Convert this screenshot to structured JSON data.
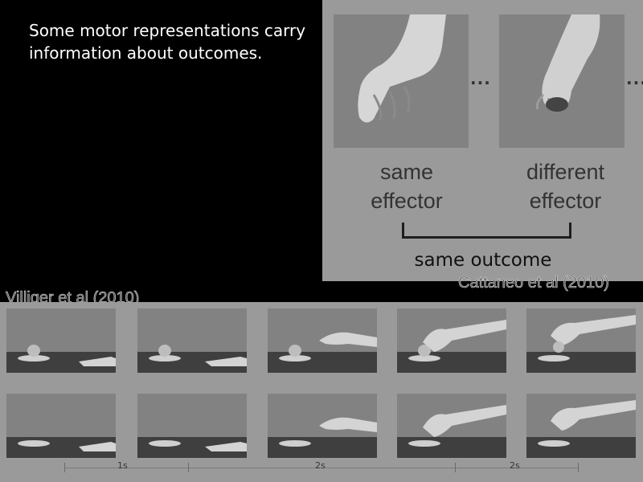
{
  "slide": {
    "title": "Some motor representations carry information about outcomes."
  },
  "cattaneo_figure": {
    "ellipsis": "...",
    "label_same": "same effector",
    "label_different": "different effector",
    "label_outcome": "same outcome",
    "credit": "Cattaneo et al (2010)"
  },
  "villiger_figure": {
    "credit": "Villiger et al (2010)",
    "timeline_labels": [
      "1s",
      "2s",
      "2s"
    ]
  }
}
